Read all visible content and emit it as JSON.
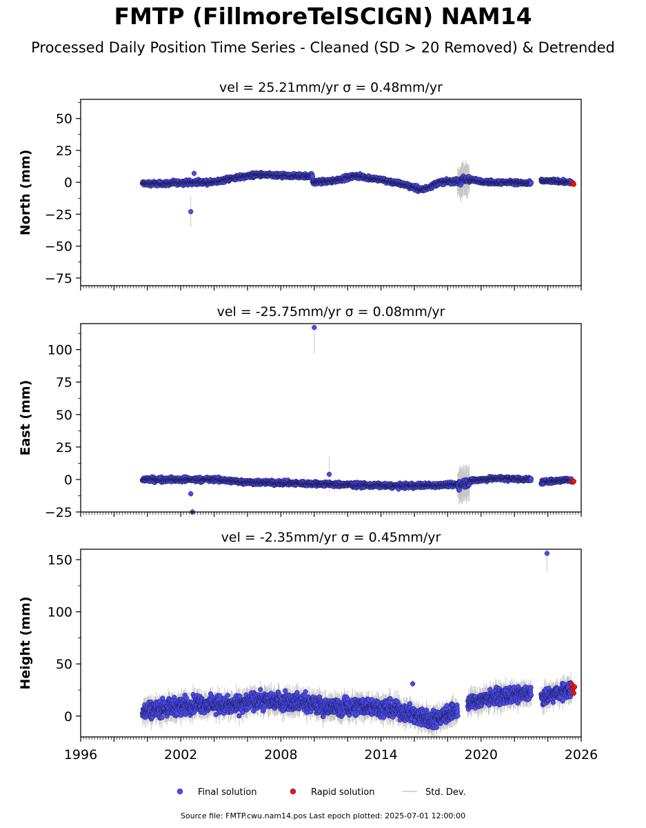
{
  "title": "FMTP (FillmoreTelSCIGN) NAM14",
  "subtitle": "Processed Daily Position Time Series - Cleaned (SD > 20 Removed) & Detrended",
  "source_note": "Source file: FMTP.cwu.nam14.pos  Last epoch plotted: 2025-07-01 12:00:00",
  "legend": {
    "placement": "bottom-center",
    "items": [
      {
        "label": "Final solution",
        "color": "#4b4bef",
        "kind": "dot"
      },
      {
        "label": "Rapid solution",
        "color": "#e8141b",
        "kind": "dot"
      },
      {
        "label": "Std. Dev.",
        "color": "#c8c8c8",
        "kind": "line"
      }
    ]
  },
  "colors": {
    "final": "#4b4bef",
    "rapid": "#e8141b",
    "stddev": "#9a9a9a",
    "edge": "#1a1a4a"
  },
  "chart_data": [
    {
      "type": "scatter",
      "panel": "north",
      "title_prefix": "vel = 25.21mm/yr",
      "title_sigma": "σ = 0.48mm/yr",
      "ylabel": "North (mm)",
      "ylim": [
        -81,
        65
      ],
      "xlim": [
        1996,
        2026
      ],
      "yticks": [
        50,
        25,
        0,
        -25,
        -50,
        -75
      ],
      "ytick_labels": [
        "50",
        "25",
        "0",
        "−25",
        "−50",
        "−75"
      ],
      "segments": [
        {
          "x": [
            1999.7,
            2001.0,
            2002.5,
            2004.0,
            2005.0,
            2006.5,
            2008.0,
            2009.9
          ],
          "y": [
            -1,
            -1,
            0,
            0,
            3,
            6,
            5,
            5
          ],
          "noise": 1.5,
          "sd": 2
        },
        {
          "x": [
            2009.9,
            2011.0,
            2012.5,
            2014.0,
            2015.5,
            2016.5,
            2017.5,
            2018.6
          ],
          "y": [
            0,
            1,
            5,
            2,
            -2,
            -6,
            0,
            1
          ],
          "noise": 1.5,
          "sd": 2
        },
        {
          "x": [
            2018.6,
            2019.3
          ],
          "y": [
            0,
            3
          ],
          "noise": 3,
          "sd": 10
        },
        {
          "x": [
            2019.3,
            2020.5,
            2022.0,
            2023.0
          ],
          "y": [
            2,
            0,
            0,
            -1
          ],
          "noise": 1.3,
          "sd": 2
        },
        {
          "x": [
            2023.6,
            2024.5,
            2025.4
          ],
          "y": [
            1,
            1,
            0
          ],
          "noise": 1.2,
          "sd": 2
        }
      ],
      "outliers": [
        {
          "x": 2002.6,
          "y": -23,
          "sd": 12
        },
        {
          "x": 2002.8,
          "y": 7,
          "sd": 3
        }
      ],
      "rapid": [
        {
          "x": 2025.45,
          "y": -1
        },
        {
          "x": 2025.5,
          "y": -0.5
        },
        {
          "x": 2025.55,
          "y": -1.5
        }
      ]
    },
    {
      "type": "scatter",
      "panel": "east",
      "title_prefix": "vel = -25.75mm/yr",
      "title_sigma": "σ = 0.08mm/yr",
      "ylabel": "East (mm)",
      "ylim": [
        -25,
        120
      ],
      "xlim": [
        1996,
        2026
      ],
      "yticks": [
        100,
        75,
        50,
        25,
        0,
        -25
      ],
      "ytick_labels": [
        "100",
        "75",
        "50",
        "25",
        "0",
        "−25"
      ],
      "segments": [
        {
          "x": [
            1999.7,
            2002.0,
            2004.0,
            2006.0,
            2009.0,
            2012.0,
            2015.0,
            2018.6
          ],
          "y": [
            0,
            0,
            0,
            -2,
            -3,
            -4,
            -5,
            -4
          ],
          "noise": 1.5,
          "sd": 2
        },
        {
          "x": [
            2018.6,
            2019.3
          ],
          "y": [
            -4,
            -2
          ],
          "noise": 3,
          "sd": 10
        },
        {
          "x": [
            2019.3,
            2021.0,
            2023.0
          ],
          "y": [
            -1,
            1,
            0
          ],
          "noise": 1.3,
          "sd": 2
        },
        {
          "x": [
            2023.6,
            2024.5,
            2025.4
          ],
          "y": [
            -2,
            -1,
            0
          ],
          "noise": 1.3,
          "sd": 2
        }
      ],
      "outliers": [
        {
          "x": 2010.0,
          "y": 117,
          "sd": 20
        },
        {
          "x": 2002.6,
          "y": -11,
          "sd": 3
        },
        {
          "x": 2002.7,
          "y": -25,
          "sd": 3
        },
        {
          "x": 2010.9,
          "y": 4,
          "sd": 14
        }
      ],
      "rapid": [
        {
          "x": 2025.45,
          "y": -1
        },
        {
          "x": 2025.5,
          "y": -2
        },
        {
          "x": 2025.55,
          "y": -1.5
        }
      ]
    },
    {
      "type": "scatter",
      "panel": "height",
      "title_prefix": "vel = -2.35mm/yr",
      "title_sigma": "σ = 0.45mm/yr",
      "ylabel": "Height (mm)",
      "ylim": [
        -20,
        160
      ],
      "xlim": [
        1996,
        2026
      ],
      "yticks": [
        150,
        100,
        50,
        0
      ],
      "ytick_labels": [
        "150",
        "100",
        "50",
        "0"
      ],
      "xticks": [
        1996,
        2002,
        2008,
        2014,
        2020,
        2026
      ],
      "xtick_labels": [
        "1996",
        "2002",
        "2008",
        "2014",
        "2020",
        "2026"
      ],
      "segments": [
        {
          "x": [
            1999.7,
            2001.0,
            2003.0,
            2005.0,
            2007.0,
            2009.0,
            2011.0,
            2013.0,
            2015.0,
            2017.0,
            2018.6
          ],
          "y": [
            5,
            8,
            12,
            10,
            15,
            14,
            8,
            10,
            6,
            -4,
            6
          ],
          "noise": 7,
          "sd": 8
        },
        {
          "x": [
            2019.2,
            2020.5,
            2022.0,
            2023.0
          ],
          "y": [
            12,
            18,
            20,
            22
          ],
          "noise": 6,
          "sd": 8
        },
        {
          "x": [
            2023.6,
            2024.5,
            2025.4
          ],
          "y": [
            16,
            22,
            26
          ],
          "noise": 6,
          "sd": 8
        }
      ],
      "outliers": [
        {
          "x": 2023.95,
          "y": 156,
          "sd": 18
        },
        {
          "x": 2015.9,
          "y": 31,
          "sd": 4
        }
      ],
      "rapid": [
        {
          "x": 2025.45,
          "y": 30
        },
        {
          "x": 2025.5,
          "y": 26
        },
        {
          "x": 2025.55,
          "y": 22
        },
        {
          "x": 2025.6,
          "y": 28
        }
      ]
    }
  ]
}
